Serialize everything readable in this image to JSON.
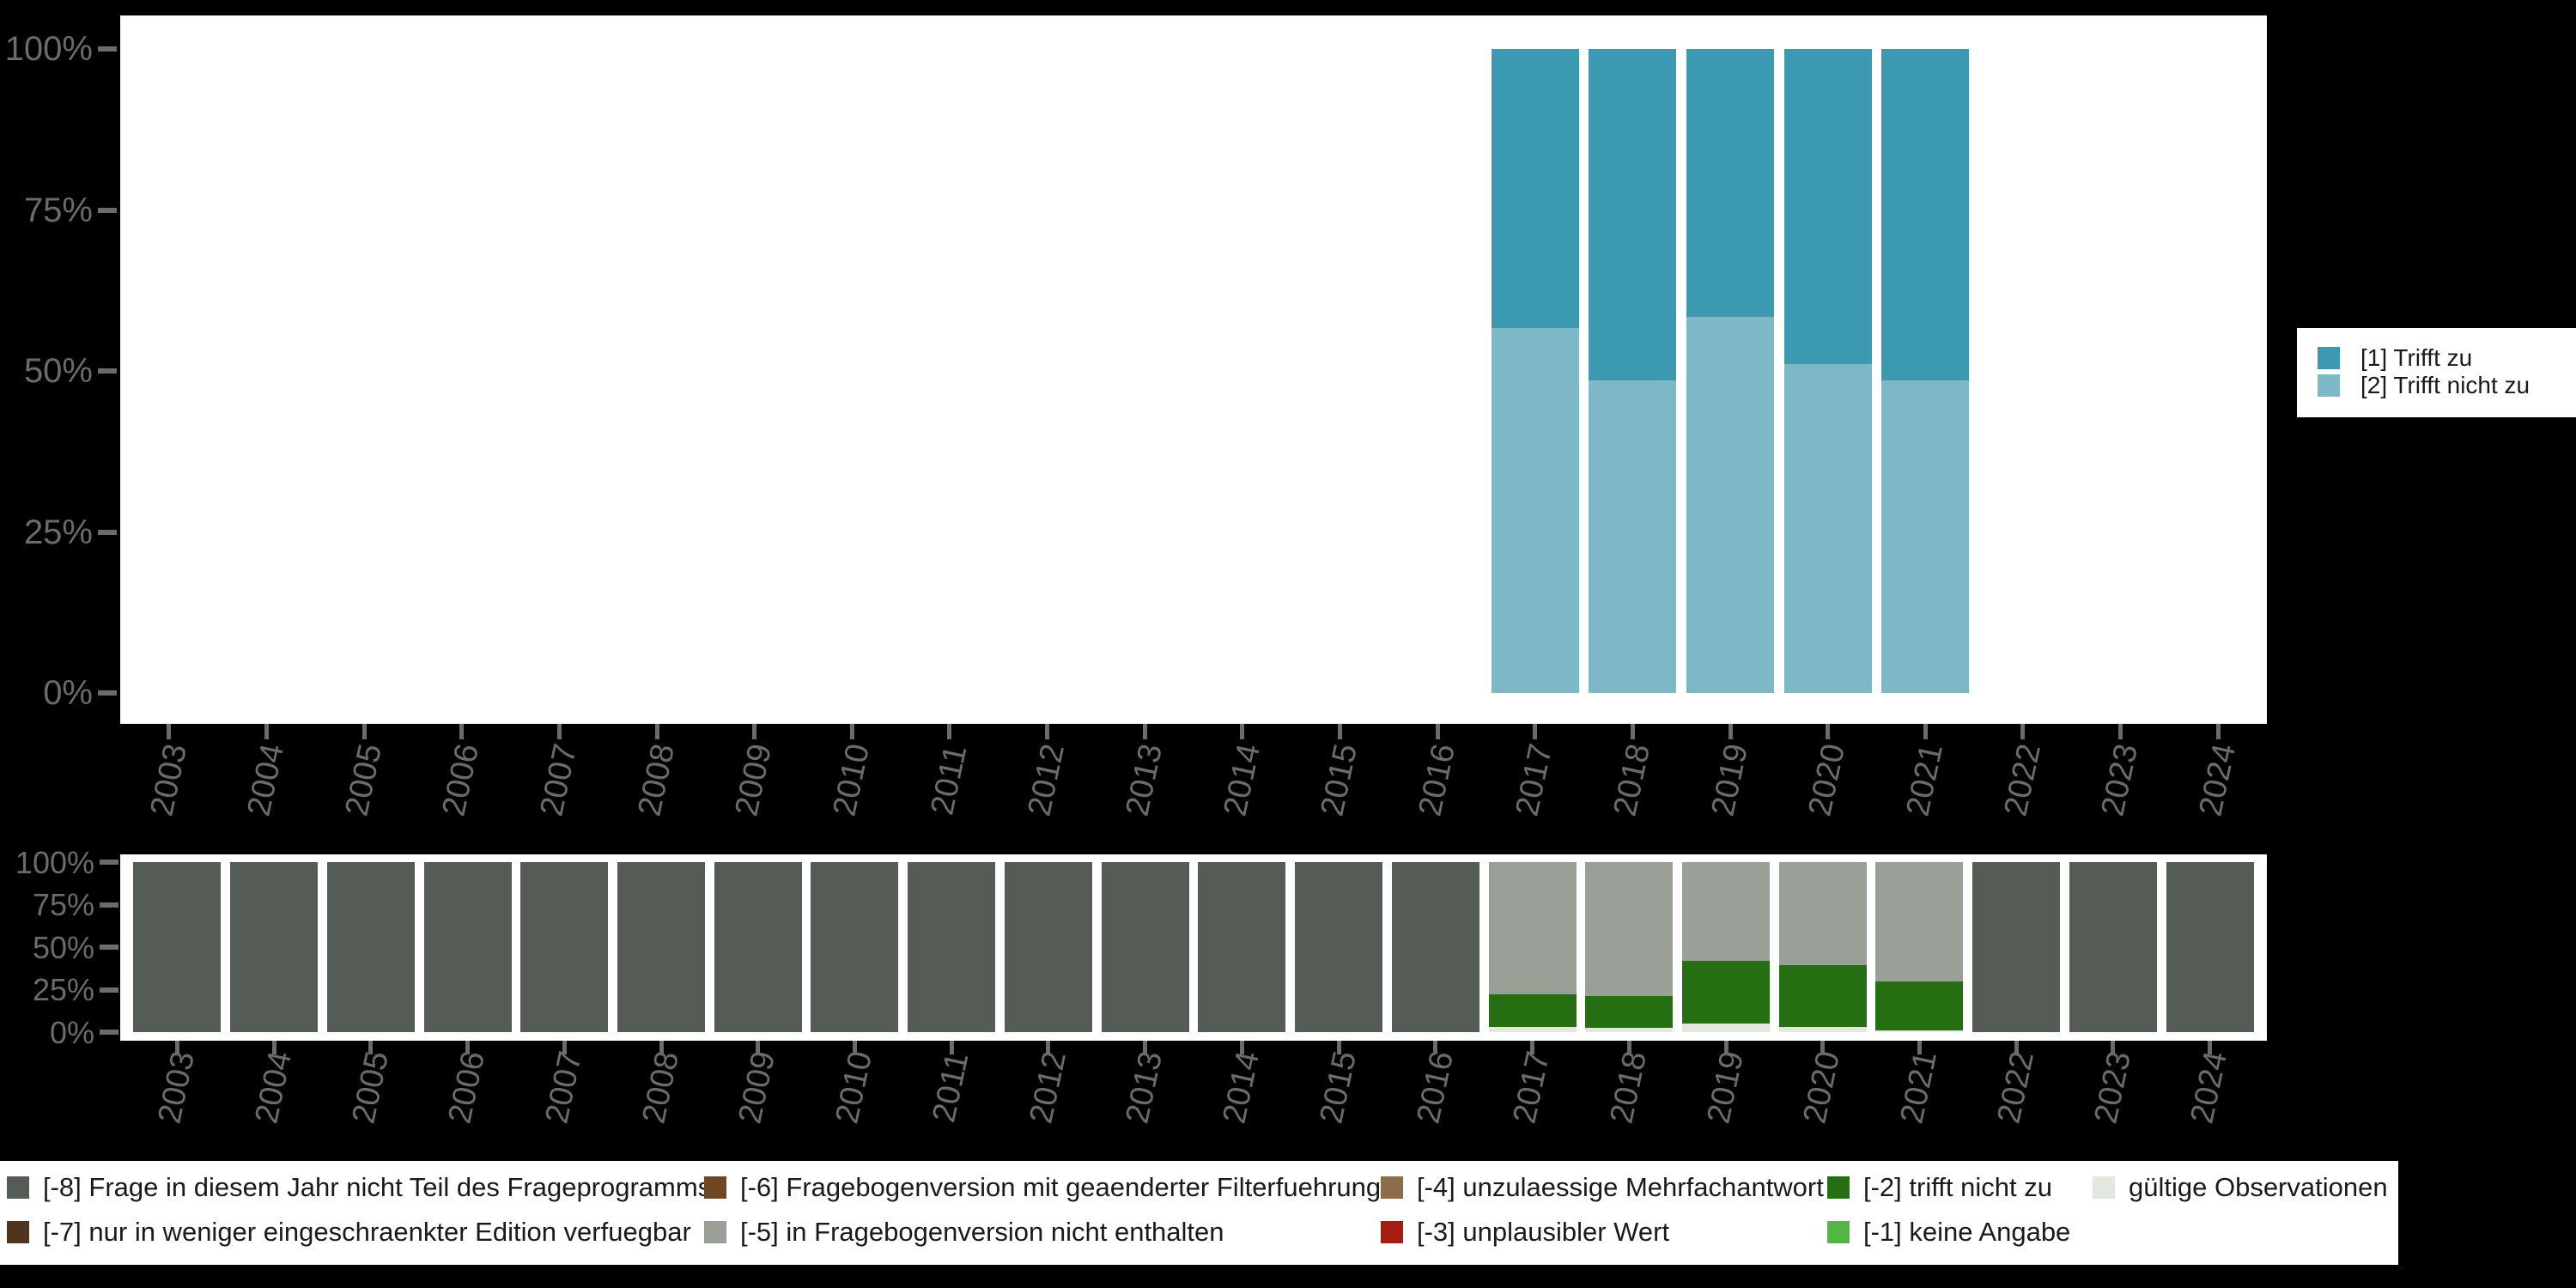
{
  "colors": {
    "background": "#000000",
    "plot_background": "#ffffff",
    "axis_text": "#6b6b6b",
    "legend_text": "#1a1a1a",
    "trifft_zu": "#3b99b1",
    "trifft_nicht_zu": "#7db8c7",
    "code_m8": "#545c55",
    "code_m7": "#4f3420",
    "code_m6": "#6f4724",
    "code_m5": "#9aa098",
    "code_m4": "#8d6c4a",
    "code_m3": "#a51c10",
    "code_m2": "#256f12",
    "code_m1": "#54b546",
    "valid_obs": "#e3e8df"
  },
  "years": [
    "2003",
    "2004",
    "2005",
    "2006",
    "2007",
    "2008",
    "2009",
    "2010",
    "2011",
    "2012",
    "2013",
    "2014",
    "2015",
    "2016",
    "2017",
    "2018",
    "2019",
    "2020",
    "2021",
    "2022",
    "2023",
    "2024"
  ],
  "y_axis_ticks": [
    "100%",
    "75%",
    "50%",
    "25%",
    "0%"
  ],
  "chart_data": [
    {
      "id": "answer-distribution",
      "type": "bar",
      "stacked": true,
      "unit": "percent",
      "ylim": [
        0,
        100
      ],
      "y_ticks": [
        "100%",
        "75%",
        "50%",
        "25%",
        "0%"
      ],
      "categories": [
        "2003",
        "2004",
        "2005",
        "2006",
        "2007",
        "2008",
        "2009",
        "2010",
        "2011",
        "2012",
        "2013",
        "2014",
        "2015",
        "2016",
        "2017",
        "2018",
        "2019",
        "2020",
        "2021",
        "2022",
        "2023",
        "2024"
      ],
      "stack_order": "bottom-to-top",
      "series": [
        {
          "name": "[2] Trifft nicht zu",
          "color": "#7db8c7",
          "values": {
            "2017": 56.7,
            "2018": 48.5,
            "2019": 58.4,
            "2020": 51.1,
            "2021": 48.5
          }
        },
        {
          "name": "[1] Trifft zu",
          "color": "#3b99b1",
          "values": {
            "2017": 43.3,
            "2018": 51.5,
            "2019": 41.6,
            "2020": 48.9,
            "2021": 51.5
          }
        }
      ],
      "legend_position": "right"
    },
    {
      "id": "missing-distribution",
      "type": "bar",
      "stacked": true,
      "unit": "percent",
      "ylim": [
        0,
        100
      ],
      "y_ticks": [
        "100%",
        "75%",
        "50%",
        "25%",
        "0%"
      ],
      "categories": [
        "2003",
        "2004",
        "2005",
        "2006",
        "2007",
        "2008",
        "2009",
        "2010",
        "2011",
        "2012",
        "2013",
        "2014",
        "2015",
        "2016",
        "2017",
        "2018",
        "2019",
        "2020",
        "2021",
        "2022",
        "2023",
        "2024"
      ],
      "stack_order": "bottom-to-top",
      "series": [
        {
          "name": "gültige Observationen",
          "color": "#e3e8df",
          "values": {
            "2017": 3.2,
            "2018": 2.3,
            "2019": 5.0,
            "2020": 3.2,
            "2021": 1.1
          }
        },
        {
          "name": "[-2] trifft nicht zu",
          "color": "#256f12",
          "values": {
            "2017": 19.1,
            "2018": 19.1,
            "2019": 36.7,
            "2020": 36.2,
            "2021": 28.7
          }
        },
        {
          "name": "[-5] in Fragebogenversion nicht enthalten",
          "color": "#9aa098",
          "values": {
            "2017": 77.7,
            "2018": 78.6,
            "2019": 58.3,
            "2020": 60.6,
            "2021": 70.2
          }
        },
        {
          "name": "[-8] Frage in diesem Jahr nicht Teil des Frageprogramms",
          "color": "#545c55",
          "values": {
            "2003": 100,
            "2004": 100,
            "2005": 100,
            "2006": 100,
            "2007": 100,
            "2008": 100,
            "2009": 100,
            "2010": 100,
            "2011": 100,
            "2012": 100,
            "2013": 100,
            "2014": 100,
            "2015": 100,
            "2016": 100,
            "2022": 100,
            "2023": 100,
            "2024": 100
          }
        }
      ],
      "legend_position": "bottom"
    }
  ],
  "legend_top": {
    "items": [
      {
        "label": "[1] Trifft zu",
        "color": "#3b99b1"
      },
      {
        "label": "[2] Trifft nicht zu",
        "color": "#7db8c7"
      }
    ]
  },
  "legend_bottom": {
    "columns": [
      [
        {
          "label": "[-8] Frage in diesem Jahr nicht Teil des Frageprogramms",
          "color": "#545c55"
        },
        {
          "label": "[-7] nur in weniger eingeschraenkter Edition verfuegbar",
          "color": "#4f3420"
        }
      ],
      [
        {
          "label": "[-6] Fragebogenversion mit geaenderter Filterfuehrung",
          "color": "#6f4724"
        },
        {
          "label": "[-5] in Fragebogenversion nicht enthalten",
          "color": "#9aa098"
        }
      ],
      [
        {
          "label": "[-4] unzulaessige Mehrfachantwort",
          "color": "#8d6c4a"
        },
        {
          "label": "[-3] unplausibler Wert",
          "color": "#a51c10"
        }
      ],
      [
        {
          "label": "[-2] trifft nicht zu",
          "color": "#256f12"
        },
        {
          "label": "[-1] keine Angabe",
          "color": "#54b546"
        }
      ],
      [
        {
          "label": "gültige Observationen",
          "color": "#e3e8df"
        }
      ]
    ]
  }
}
